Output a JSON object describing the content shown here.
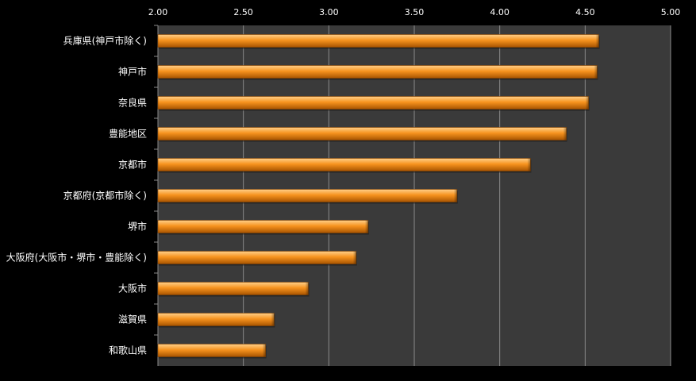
{
  "chart_data": {
    "type": "bar",
    "orientation": "horizontal",
    "categories": [
      "兵庫県(神戸市除く)",
      "神戸市",
      "奈良県",
      "豊能地区",
      "京都市",
      "京都府(京都市除く)",
      "堺市",
      "大阪府(大阪市・堺市・豊能除く)",
      "大阪市",
      "滋賀県",
      "和歌山県"
    ],
    "values": [
      4.58,
      4.57,
      4.52,
      4.39,
      4.18,
      3.75,
      3.23,
      3.16,
      2.88,
      2.68,
      2.63
    ],
    "xlim": [
      2.0,
      5.0
    ],
    "xticks": [
      "2.00",
      "2.50",
      "3.00",
      "3.50",
      "4.00",
      "4.50",
      "5.00"
    ],
    "xtick_values": [
      2.0,
      2.5,
      3.0,
      3.5,
      4.0,
      4.5,
      5.0
    ],
    "x_axis_position": "top",
    "grid": true,
    "title": "",
    "xlabel": "",
    "ylabel": "",
    "colors": {
      "background": "#000000",
      "plot_area": "#3a3a3a",
      "grid": "#8a8a8a",
      "bar_light": "#ffd08a",
      "bar_mid": "#f7931e",
      "bar_dark": "#a85400",
      "text": "#ffffff"
    }
  }
}
